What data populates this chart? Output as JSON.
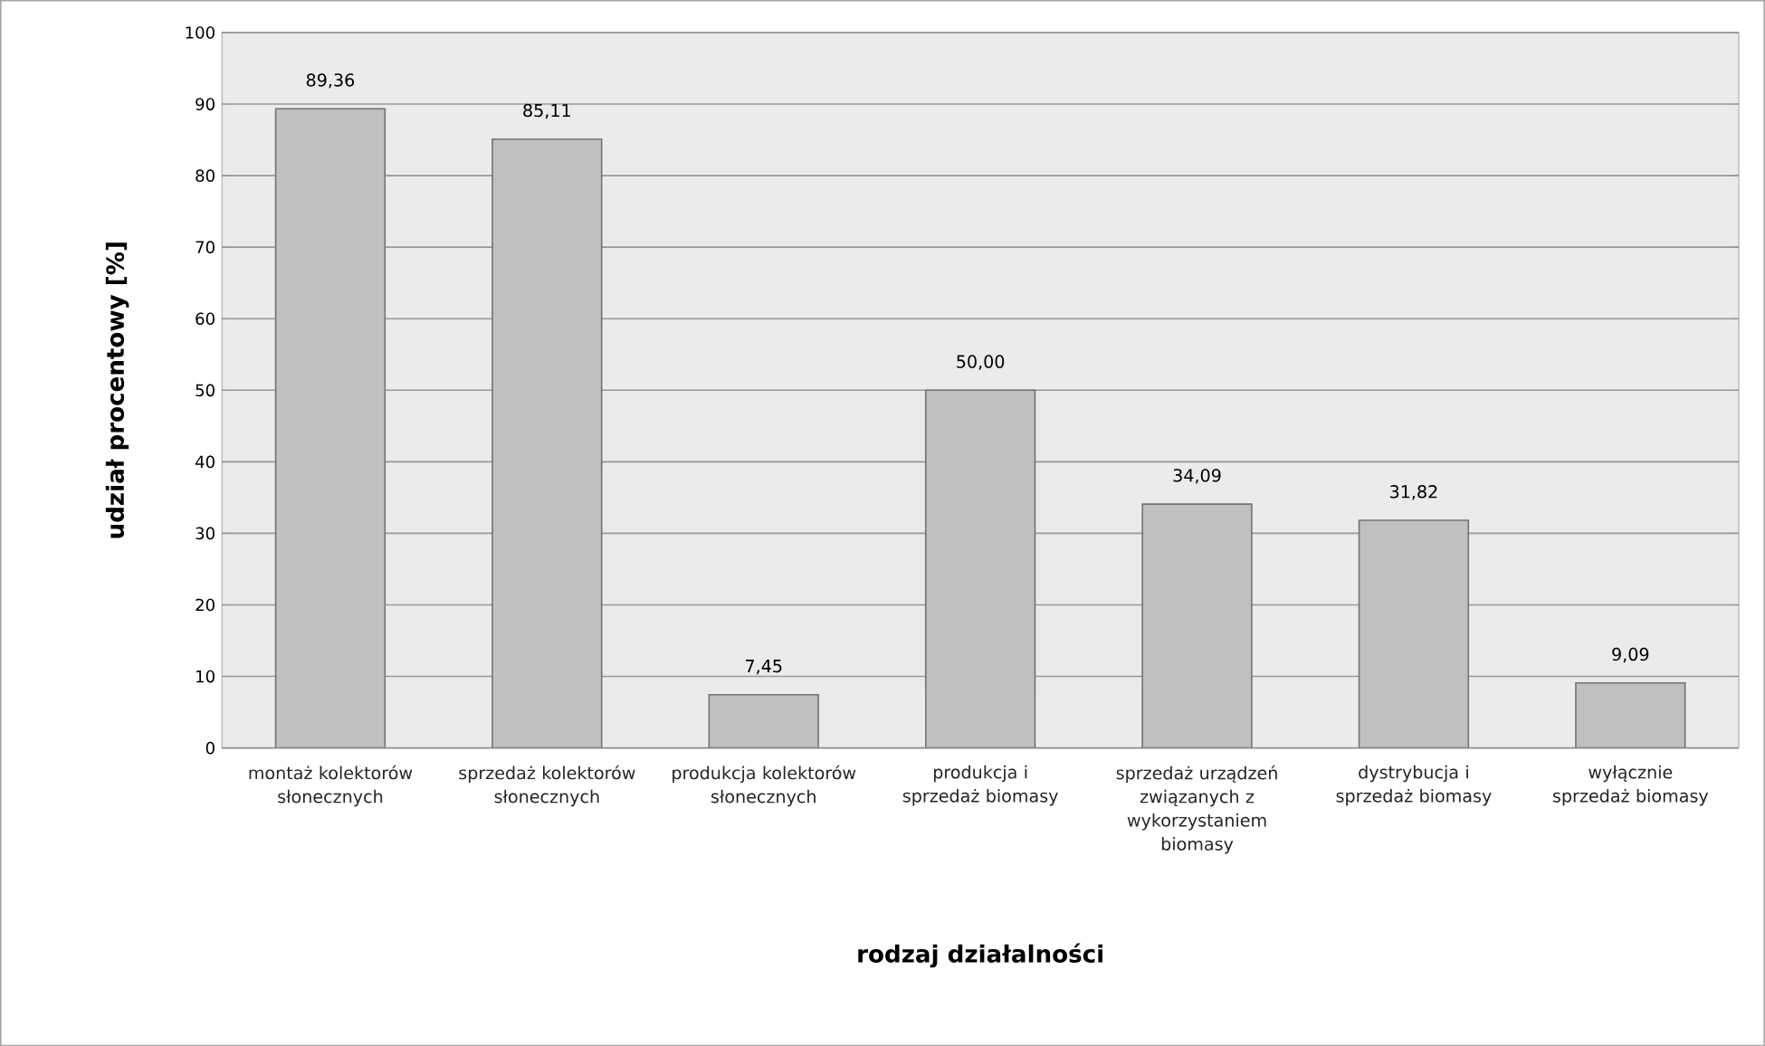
{
  "chart_data": {
    "type": "bar",
    "xlabel": "rodzaj działalności",
    "ylabel": "udział procentowy [%]",
    "categories": [
      "montaż kolektorów słonecznych",
      "sprzedaż kolektorów słonecznych",
      "produkcja kolektorów słonecznych",
      "produkcja i sprzedaż biomasy",
      "sprzedaż urządzeń związanych z wykorzystaniem biomasy",
      "dystrybucja i sprzedaż biomasy",
      "wyłącznie sprzedaż biomasy"
    ],
    "values": [
      89.36,
      85.11,
      7.45,
      50.0,
      34.09,
      31.82,
      9.09
    ],
    "value_labels": [
      "89,36",
      "85,11",
      "7,45",
      "50,00",
      "34,09",
      "31,82",
      "9,09"
    ],
    "color": "#c0c0c0",
    "ylim": [
      0,
      100
    ],
    "yticks": [
      0,
      10,
      20,
      30,
      40,
      50,
      60,
      70,
      80,
      90,
      100
    ],
    "grid": "y"
  }
}
